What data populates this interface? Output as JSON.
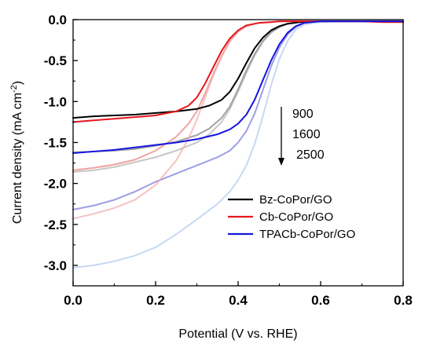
{
  "chart_data": {
    "type": "line",
    "title": "",
    "xlabel": "Potential (V vs. RHE)",
    "ylabel_main": "Current density (mA cm",
    "ylabel_sup": "-2",
    "ylabel_close": ")",
    "xlim": [
      0.0,
      0.8
    ],
    "ylim": [
      -3.25,
      0.0
    ],
    "x_ticks": [
      0.0,
      0.2,
      0.4,
      0.6,
      0.8
    ],
    "x_tick_labels": [
      "0.0",
      "0.2",
      "0.4",
      "0.6",
      "0.8"
    ],
    "y_ticks": [
      0.0,
      -0.5,
      -1.0,
      -1.5,
      -2.0,
      -2.5,
      -3.0
    ],
    "y_tick_labels": [
      "0.0",
      "-0.5",
      "-1.0",
      "-1.5",
      "-2.0",
      "-2.5",
      "-3.0"
    ],
    "grid": false,
    "legend_position": "lower-right",
    "legend": [
      {
        "name": "Bz-CoPor/GO",
        "color": "#000000"
      },
      {
        "name": "Cb-CoPor/GO",
        "color": "#e8161b"
      },
      {
        "name": "TPACb-CoPor/GO",
        "color": "#1515e0"
      }
    ],
    "annotation": {
      "labels": [
        "900",
        "1600",
        "2500"
      ],
      "arrow": "down"
    },
    "series": [
      {
        "group": "Bz-CoPor/GO",
        "rpm": "900",
        "color": "#000000",
        "opacity": 1.0,
        "x": [
          0.0,
          0.05,
          0.1,
          0.15,
          0.2,
          0.25,
          0.3,
          0.33,
          0.36,
          0.38,
          0.4,
          0.42,
          0.44,
          0.46,
          0.48,
          0.5,
          0.52,
          0.55,
          0.6,
          0.65,
          0.7,
          0.75,
          0.8
        ],
        "y": [
          -1.2,
          -1.18,
          -1.17,
          -1.16,
          -1.14,
          -1.12,
          -1.09,
          -1.05,
          -0.98,
          -0.88,
          -0.72,
          -0.53,
          -0.35,
          -0.22,
          -0.13,
          -0.08,
          -0.05,
          -0.03,
          -0.02,
          -0.02,
          -0.02,
          -0.02,
          -0.02
        ]
      },
      {
        "group": "Bz-CoPor/GO",
        "rpm": "1600",
        "color": "#555555",
        "opacity": 0.55,
        "x": [
          0.0,
          0.05,
          0.1,
          0.15,
          0.2,
          0.25,
          0.3,
          0.33,
          0.36,
          0.38,
          0.4,
          0.42,
          0.44,
          0.46,
          0.48,
          0.5,
          0.52,
          0.55,
          0.6,
          0.65,
          0.7,
          0.75,
          0.8
        ],
        "y": [
          -1.62,
          -1.61,
          -1.6,
          -1.58,
          -1.54,
          -1.49,
          -1.41,
          -1.33,
          -1.2,
          -1.06,
          -0.85,
          -0.62,
          -0.42,
          -0.26,
          -0.15,
          -0.09,
          -0.05,
          -0.03,
          -0.02,
          -0.02,
          -0.02,
          -0.02,
          -0.02
        ]
      },
      {
        "group": "Bz-CoPor/GO",
        "rpm": "2500",
        "color": "#999999",
        "opacity": 0.55,
        "x": [
          0.0,
          0.05,
          0.1,
          0.15,
          0.2,
          0.25,
          0.3,
          0.33,
          0.36,
          0.38,
          0.4,
          0.42,
          0.44,
          0.46,
          0.48,
          0.5,
          0.52,
          0.55,
          0.6,
          0.65,
          0.7,
          0.75,
          0.8
        ],
        "y": [
          -1.86,
          -1.84,
          -1.8,
          -1.74,
          -1.68,
          -1.6,
          -1.5,
          -1.4,
          -1.25,
          -1.09,
          -0.88,
          -0.65,
          -0.44,
          -0.27,
          -0.16,
          -0.09,
          -0.05,
          -0.03,
          -0.02,
          -0.02,
          -0.02,
          -0.02,
          -0.02
        ]
      },
      {
        "group": "Cb-CoPor/GO",
        "rpm": "900",
        "color": "#e8161b",
        "opacity": 1.0,
        "x": [
          0.0,
          0.05,
          0.1,
          0.15,
          0.2,
          0.25,
          0.28,
          0.3,
          0.32,
          0.34,
          0.36,
          0.38,
          0.4,
          0.42,
          0.45,
          0.48,
          0.5,
          0.55,
          0.6,
          0.65,
          0.7,
          0.75,
          0.8
        ],
        "y": [
          -1.25,
          -1.23,
          -1.21,
          -1.19,
          -1.17,
          -1.12,
          -1.05,
          -0.95,
          -0.78,
          -0.58,
          -0.38,
          -0.23,
          -0.13,
          -0.07,
          -0.04,
          -0.03,
          -0.02,
          -0.02,
          -0.02,
          -0.02,
          -0.02,
          -0.03,
          -0.03
        ]
      },
      {
        "group": "Cb-CoPor/GO",
        "rpm": "1600",
        "color": "#e87070",
        "opacity": 0.65,
        "x": [
          0.0,
          0.05,
          0.1,
          0.15,
          0.2,
          0.25,
          0.28,
          0.3,
          0.32,
          0.34,
          0.36,
          0.38,
          0.4,
          0.42,
          0.45,
          0.48,
          0.5,
          0.55,
          0.6,
          0.65,
          0.7,
          0.75,
          0.8
        ],
        "y": [
          -1.84,
          -1.81,
          -1.77,
          -1.71,
          -1.6,
          -1.43,
          -1.27,
          -1.12,
          -0.9,
          -0.66,
          -0.44,
          -0.26,
          -0.14,
          -0.08,
          -0.04,
          -0.03,
          -0.02,
          -0.02,
          -0.02,
          -0.02,
          -0.02,
          -0.03,
          -0.03
        ]
      },
      {
        "group": "Cb-CoPor/GO",
        "rpm": "2500",
        "color": "#f2a8a8",
        "opacity": 0.7,
        "x": [
          0.0,
          0.05,
          0.1,
          0.15,
          0.2,
          0.25,
          0.28,
          0.3,
          0.32,
          0.34,
          0.36,
          0.38,
          0.4,
          0.42,
          0.45,
          0.48,
          0.5,
          0.55,
          0.6,
          0.65,
          0.7,
          0.75,
          0.8
        ],
        "y": [
          -2.43,
          -2.37,
          -2.3,
          -2.2,
          -2.02,
          -1.72,
          -1.45,
          -1.22,
          -0.95,
          -0.68,
          -0.45,
          -0.27,
          -0.15,
          -0.08,
          -0.04,
          -0.03,
          -0.02,
          -0.02,
          -0.02,
          -0.02,
          -0.02,
          -0.03,
          -0.03
        ]
      },
      {
        "group": "TPACb-CoPor/GO",
        "rpm": "900",
        "color": "#1515e0",
        "opacity": 1.0,
        "x": [
          0.0,
          0.05,
          0.1,
          0.15,
          0.2,
          0.25,
          0.3,
          0.35,
          0.38,
          0.4,
          0.42,
          0.44,
          0.46,
          0.48,
          0.5,
          0.52,
          0.54,
          0.56,
          0.6,
          0.65,
          0.7,
          0.75,
          0.8
        ],
        "y": [
          -1.63,
          -1.61,
          -1.59,
          -1.56,
          -1.53,
          -1.5,
          -1.46,
          -1.4,
          -1.34,
          -1.27,
          -1.16,
          -0.98,
          -0.74,
          -0.5,
          -0.3,
          -0.16,
          -0.08,
          -0.04,
          -0.02,
          -0.02,
          -0.02,
          -0.02,
          -0.02
        ]
      },
      {
        "group": "TPACb-CoPor/GO",
        "rpm": "1600",
        "color": "#6a6ad8",
        "opacity": 0.65,
        "x": [
          0.0,
          0.05,
          0.1,
          0.15,
          0.2,
          0.25,
          0.3,
          0.35,
          0.38,
          0.4,
          0.42,
          0.44,
          0.46,
          0.48,
          0.5,
          0.52,
          0.54,
          0.56,
          0.6,
          0.65,
          0.7,
          0.75,
          0.8
        ],
        "y": [
          -2.32,
          -2.27,
          -2.2,
          -2.1,
          -1.98,
          -1.88,
          -1.78,
          -1.68,
          -1.6,
          -1.5,
          -1.36,
          -1.15,
          -0.86,
          -0.57,
          -0.34,
          -0.18,
          -0.09,
          -0.04,
          -0.02,
          -0.02,
          -0.02,
          -0.02,
          -0.02
        ]
      },
      {
        "group": "TPACb-CoPor/GO",
        "rpm": "2500",
        "color": "#b8d0ef",
        "opacity": 0.8,
        "x": [
          0.0,
          0.05,
          0.1,
          0.15,
          0.2,
          0.25,
          0.3,
          0.35,
          0.38,
          0.4,
          0.42,
          0.44,
          0.46,
          0.48,
          0.5,
          0.52,
          0.54,
          0.56,
          0.6,
          0.65,
          0.7,
          0.75,
          0.8
        ],
        "y": [
          -3.03,
          -3.0,
          -2.95,
          -2.88,
          -2.78,
          -2.62,
          -2.44,
          -2.25,
          -2.1,
          -1.96,
          -1.78,
          -1.52,
          -1.18,
          -0.8,
          -0.48,
          -0.26,
          -0.12,
          -0.06,
          -0.03,
          -0.02,
          -0.02,
          -0.02,
          -0.02
        ]
      }
    ]
  }
}
